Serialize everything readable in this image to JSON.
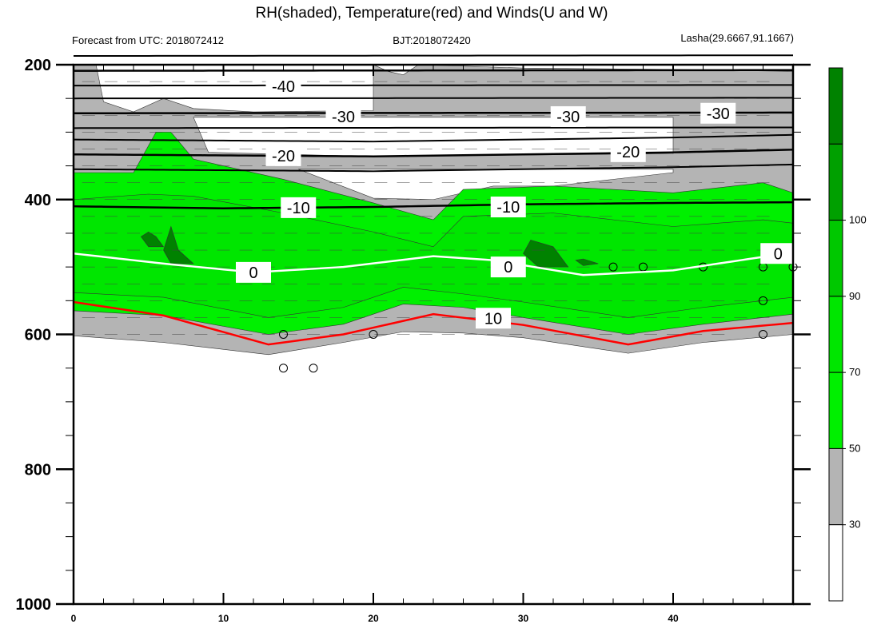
{
  "title": "RH(shaded), Temperature(red) and Winds(U and W)",
  "subtitle_left": "Forecast from UTC: 2018072412",
  "subtitle_center": "BJT:2018072420",
  "subtitle_right": "Lasha(29.6667,91.1667)",
  "chart_data": {
    "type": "contour",
    "x": {
      "ticks": [
        "0",
        "10",
        "20",
        "30",
        "40"
      ],
      "range": [
        0,
        48
      ]
    },
    "y": {
      "ticks": [
        "200",
        "400",
        "600",
        "800",
        "1000"
      ],
      "range": [
        200,
        1000
      ],
      "reversed": true
    },
    "colorbar": {
      "labels": [
        "30",
        "50",
        "70",
        "90",
        "100"
      ],
      "colors": [
        "#ffffff",
        "#b4b4b4",
        "#00f000",
        "#00e600",
        "#00c800",
        "#00a000",
        "#008200"
      ]
    },
    "temperature_contours": [
      {
        "label": "-40",
        "level": -40,
        "color": "#000000",
        "profile": [
          [
            0,
            209
          ],
          [
            48,
            208
          ]
        ]
      },
      {
        "label": "-30",
        "level": -30,
        "color": "#000000",
        "profile": [
          [
            0,
            272
          ],
          [
            48,
            271
          ]
        ]
      },
      {
        "label": "-20",
        "level": -20,
        "color": "#000000",
        "profile": [
          [
            0,
            333
          ],
          [
            20,
            336
          ],
          [
            40,
            330
          ],
          [
            48,
            326
          ]
        ]
      },
      {
        "label": "-10",
        "level": -10,
        "color": "#000000",
        "profile": [
          [
            0,
            410
          ],
          [
            10,
            413
          ],
          [
            20,
            411
          ],
          [
            30,
            407
          ],
          [
            40,
            405
          ],
          [
            48,
            404
          ]
        ]
      },
      {
        "label": "0",
        "level": 0,
        "color": "#ffffff",
        "profile": [
          [
            0,
            480
          ],
          [
            6,
            495
          ],
          [
            12,
            508
          ],
          [
            18,
            500
          ],
          [
            24,
            484
          ],
          [
            28,
            490
          ],
          [
            34,
            512
          ],
          [
            40,
            505
          ],
          [
            46,
            485
          ],
          [
            48,
            480
          ]
        ]
      },
      {
        "label": "10",
        "level": 10,
        "color": "#ff0000",
        "profile": [
          [
            0,
            552
          ],
          [
            6,
            572
          ],
          [
            13,
            615
          ],
          [
            18,
            600
          ],
          [
            24,
            570
          ],
          [
            30,
            586
          ],
          [
            37,
            615
          ],
          [
            42,
            595
          ],
          [
            48,
            583
          ]
        ]
      }
    ],
    "contour_labels": [
      {
        "text": "-40",
        "x": 14,
        "p": 232
      },
      {
        "text": "-30",
        "x": 18,
        "p": 277
      },
      {
        "text": "-30",
        "x": 33,
        "p": 277
      },
      {
        "text": "-30",
        "x": 43,
        "p": 272
      },
      {
        "text": "-20",
        "x": 14,
        "p": 335
      },
      {
        "text": "-20",
        "x": 37,
        "p": 329
      },
      {
        "text": "-10",
        "x": 15,
        "p": 412
      },
      {
        "text": "-10",
        "x": 29,
        "p": 411
      },
      {
        "text": "0",
        "x": 12,
        "p": 508
      },
      {
        "text": "0",
        "x": 29,
        "p": 500
      },
      {
        "text": "0",
        "x": 47,
        "p": 480
      },
      {
        "text": "10",
        "x": 28,
        "p": 576
      }
    ]
  }
}
